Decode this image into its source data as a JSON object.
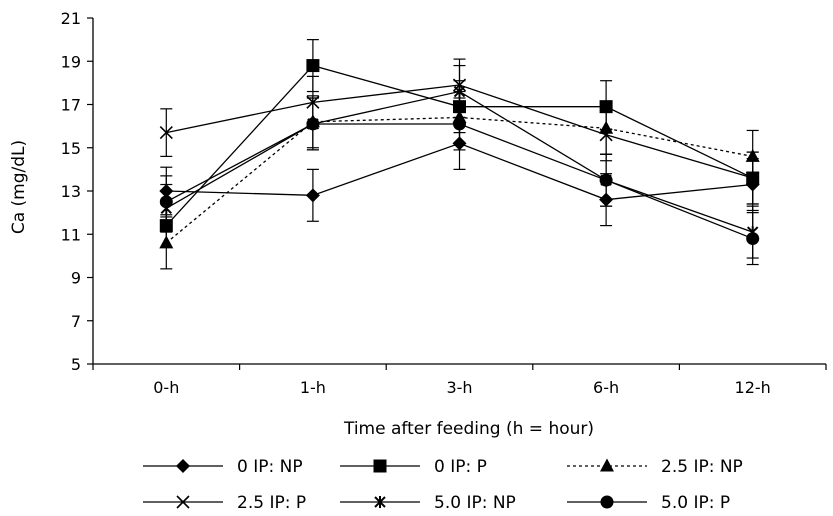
{
  "chart_data": {
    "type": "line",
    "xlabel": "Time after feeding (h = hour)",
    "ylabel": "Ca (mg/dL)",
    "categories": [
      "0-h",
      "1-h",
      "3-h",
      "6-h",
      "12-h"
    ],
    "ylim": [
      5,
      21
    ],
    "yticks": [
      5,
      7,
      9,
      11,
      13,
      15,
      17,
      19,
      21
    ],
    "grid": false,
    "legend_position": "bottom",
    "series": [
      {
        "name": "0 IP: NP",
        "marker": "diamond",
        "line": "solid",
        "values": [
          13.0,
          12.8,
          15.2,
          12.6,
          13.3
        ],
        "errors": [
          1.1,
          1.2,
          1.2,
          1.2,
          1.2
        ]
      },
      {
        "name": "0 IP: P",
        "marker": "square",
        "line": "solid",
        "values": [
          11.4,
          18.8,
          16.9,
          16.9,
          13.6
        ],
        "errors": [
          1.0,
          1.2,
          1.2,
          1.2,
          1.2
        ]
      },
      {
        "name": "2.5 IP: NP",
        "marker": "triangle",
        "line": "dotted",
        "values": [
          10.6,
          16.2,
          16.4,
          15.9,
          14.6
        ],
        "errors": [
          1.2,
          1.2,
          1.2,
          1.2,
          1.2
        ]
      },
      {
        "name": "2.5 IP: P",
        "marker": "x",
        "line": "solid",
        "values": [
          15.7,
          17.1,
          17.9,
          15.6,
          13.6
        ],
        "errors": [
          1.1,
          1.2,
          1.2,
          1.2,
          1.2
        ]
      },
      {
        "name": "5.0 IP: NP",
        "marker": "star",
        "line": "solid",
        "values": [
          12.2,
          16.1,
          17.6,
          13.5,
          11.1
        ],
        "errors": [
          1.1,
          1.2,
          1.2,
          1.2,
          1.2
        ]
      },
      {
        "name": "5.0 IP: P",
        "marker": "circle",
        "line": "solid",
        "values": [
          12.5,
          16.1,
          16.1,
          13.5,
          10.8
        ],
        "errors": [
          1.2,
          1.2,
          1.2,
          1.2,
          1.2
        ]
      }
    ]
  }
}
